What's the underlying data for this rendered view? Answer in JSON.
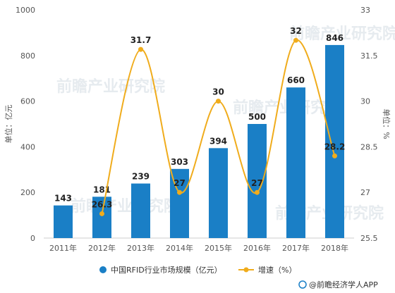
{
  "chart_data": {
    "type": "bar",
    "categories": [
      "2011年",
      "2012年",
      "2013年",
      "2014年",
      "2015年",
      "2016年",
      "2017年",
      "2018年"
    ],
    "series": [
      {
        "name": "中国RFID行业市场规模（亿元）",
        "type": "bar",
        "axis": "left",
        "color": "#1a7fc6",
        "values": [
          143,
          181,
          239,
          303,
          394,
          500,
          660,
          846
        ]
      },
      {
        "name": "增速（%）",
        "type": "line",
        "axis": "right",
        "color": "#f0ac1c",
        "values": [
          null,
          26.3,
          31.7,
          27,
          30,
          27,
          32,
          28.2
        ]
      }
    ],
    "ylabel_left": "单位：亿元",
    "ylabel_right": "单位：%",
    "ylim_left": [
      0,
      1000
    ],
    "yticks_left": [
      0,
      200,
      400,
      600,
      800,
      1000
    ],
    "ylim_right": [
      25.5,
      33
    ],
    "yticks_right": [
      "25.5",
      "27",
      "28.5",
      "30",
      "31.5",
      "33"
    ],
    "grid": false,
    "legend_position": "bottom"
  },
  "watermark": "前瞻产业研究院",
  "source": "@前瞻经济学人APP"
}
